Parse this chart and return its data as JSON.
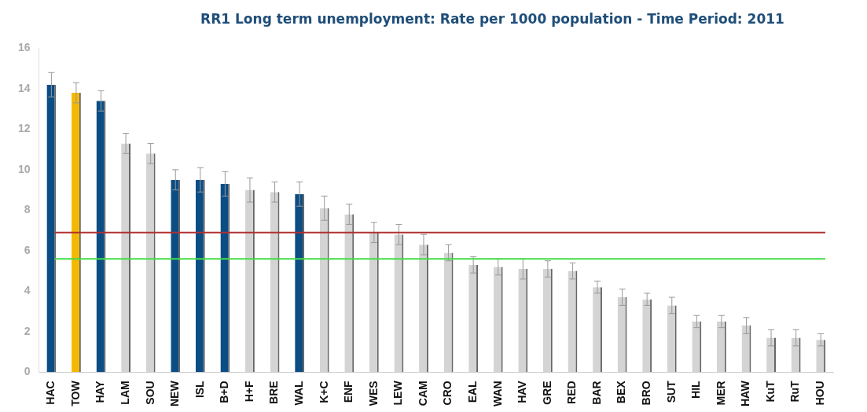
{
  "chart_data": {
    "type": "bar",
    "title": "RR1 Long term unemployment: Rate per 1000 population - Time Period: 2011",
    "categories": [
      "HAC",
      "TOW",
      "HAY",
      "LAM",
      "SOU",
      "NEW",
      "ISL",
      "B+D",
      "H+F",
      "BRE",
      "WAL",
      "K+C",
      "ENF",
      "WES",
      "LEW",
      "CAM",
      "CRO",
      "EAL",
      "WAN",
      "HAV",
      "GRE",
      "RED",
      "BAR",
      "BEX",
      "BRO",
      "SUT",
      "HIL",
      "MER",
      "HAW",
      "KuT",
      "RuT",
      "HOU"
    ],
    "values": [
      14.2,
      13.8,
      13.4,
      11.3,
      10.8,
      9.5,
      9.5,
      9.3,
      9.0,
      8.9,
      8.8,
      8.1,
      7.8,
      6.9,
      6.8,
      6.3,
      5.9,
      5.3,
      5.2,
      5.1,
      5.1,
      5.0,
      4.2,
      3.7,
      3.6,
      3.3,
      2.5,
      2.5,
      2.3,
      1.7,
      1.7,
      1.6
    ],
    "errors": [
      0.6,
      0.5,
      0.5,
      0.5,
      0.5,
      0.5,
      0.6,
      0.6,
      0.6,
      0.5,
      0.6,
      0.6,
      0.5,
      0.5,
      0.5,
      0.5,
      0.4,
      0.4,
      0.4,
      0.5,
      0.4,
      0.4,
      0.3,
      0.4,
      0.3,
      0.4,
      0.3,
      0.3,
      0.4,
      0.4,
      0.4,
      0.3
    ],
    "colors": [
      "#0b4d85",
      "#f5b800",
      "#0b4d85",
      "#d4d4d4",
      "#d4d4d4",
      "#0b4d85",
      "#0b4d85",
      "#0b4d85",
      "#d4d4d4",
      "#d4d4d4",
      "#0b4d85",
      "#d4d4d4",
      "#d4d4d4",
      "#d4d4d4",
      "#d4d4d4",
      "#d4d4d4",
      "#d4d4d4",
      "#d4d4d4",
      "#d4d4d4",
      "#d4d4d4",
      "#d4d4d4",
      "#d4d4d4",
      "#d4d4d4",
      "#d4d4d4",
      "#d4d4d4",
      "#d4d4d4",
      "#d4d4d4",
      "#d4d4d4",
      "#d4d4d4",
      "#d4d4d4",
      "#d4d4d4",
      "#d4d4d4"
    ],
    "ylim": [
      0,
      16
    ],
    "yticks": [
      0,
      2,
      4,
      6,
      8,
      10,
      12,
      14,
      16
    ],
    "ref_lines": [
      {
        "axis": "y",
        "value": 6.9,
        "color": "#b03030"
      },
      {
        "axis": "y",
        "value": 5.6,
        "color": "#44dd44"
      }
    ]
  }
}
